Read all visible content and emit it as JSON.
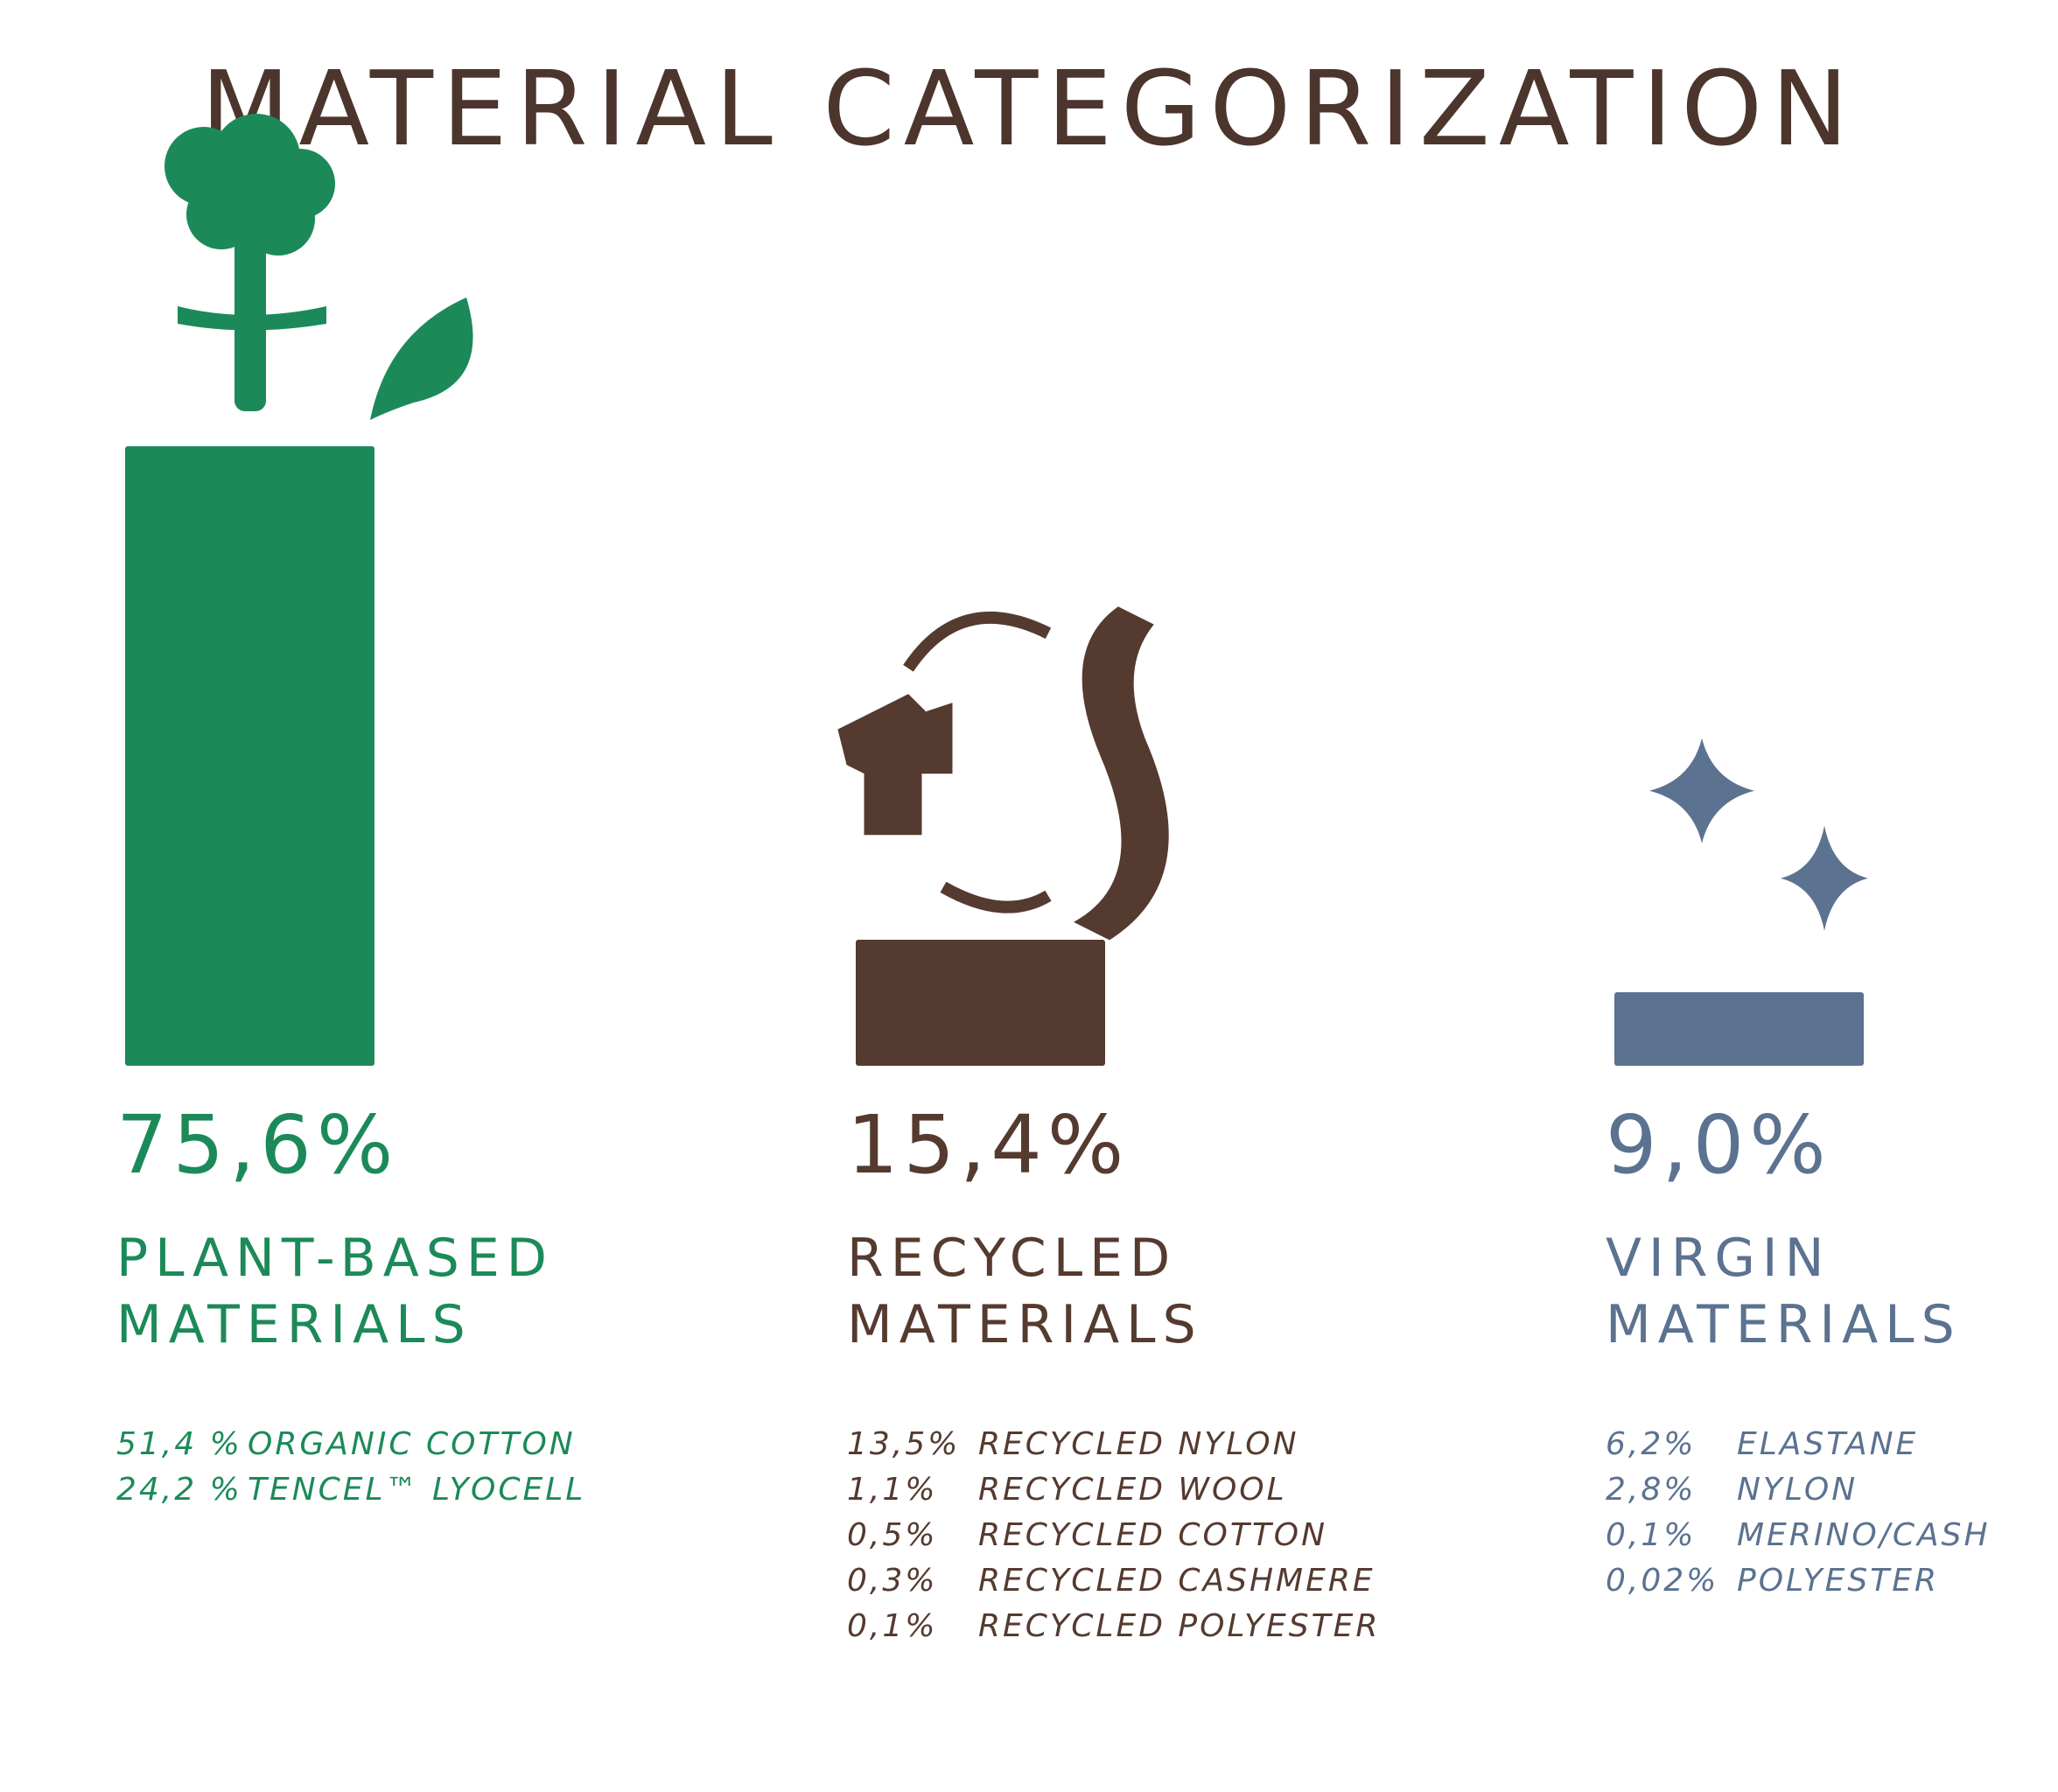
{
  "chart_data": {
    "type": "bar",
    "title": "MATERIAL CATEGORIZATION",
    "categories": [
      "PLANT-BASED MATERIALS",
      "RECYCLED MATERIALS",
      "VIRGIN MATERIALS"
    ],
    "values": [
      75.6,
      15.4,
      9.0
    ],
    "value_labels": [
      "75,6%",
      "15,4%",
      "9,0%"
    ],
    "colors": [
      "#1c8a58",
      "#553a2f",
      "#5b7290"
    ],
    "breakdown": [
      [
        [
          "51,4 %",
          "ORGANIC COTTON"
        ],
        [
          "24,2 %",
          "TENCEL™ LYOCELL"
        ]
      ],
      [
        [
          "13,5%",
          "RECYCLED NYLON"
        ],
        [
          "1,1%",
          "RECYCLED WOOL"
        ],
        [
          "0,5%",
          "RECYCLED COTTON"
        ],
        [
          "0,3%",
          "RECYCLED CASHMERE"
        ],
        [
          "0,1%",
          "RECYCLED POLYESTER"
        ]
      ],
      [
        [
          "6,2%",
          "ELASTANE"
        ],
        [
          "2,8%",
          "NYLON"
        ],
        [
          "0,1%",
          "MERINO/CASH"
        ],
        [
          "0,02%",
          "POLYESTER"
        ]
      ]
    ]
  }
}
